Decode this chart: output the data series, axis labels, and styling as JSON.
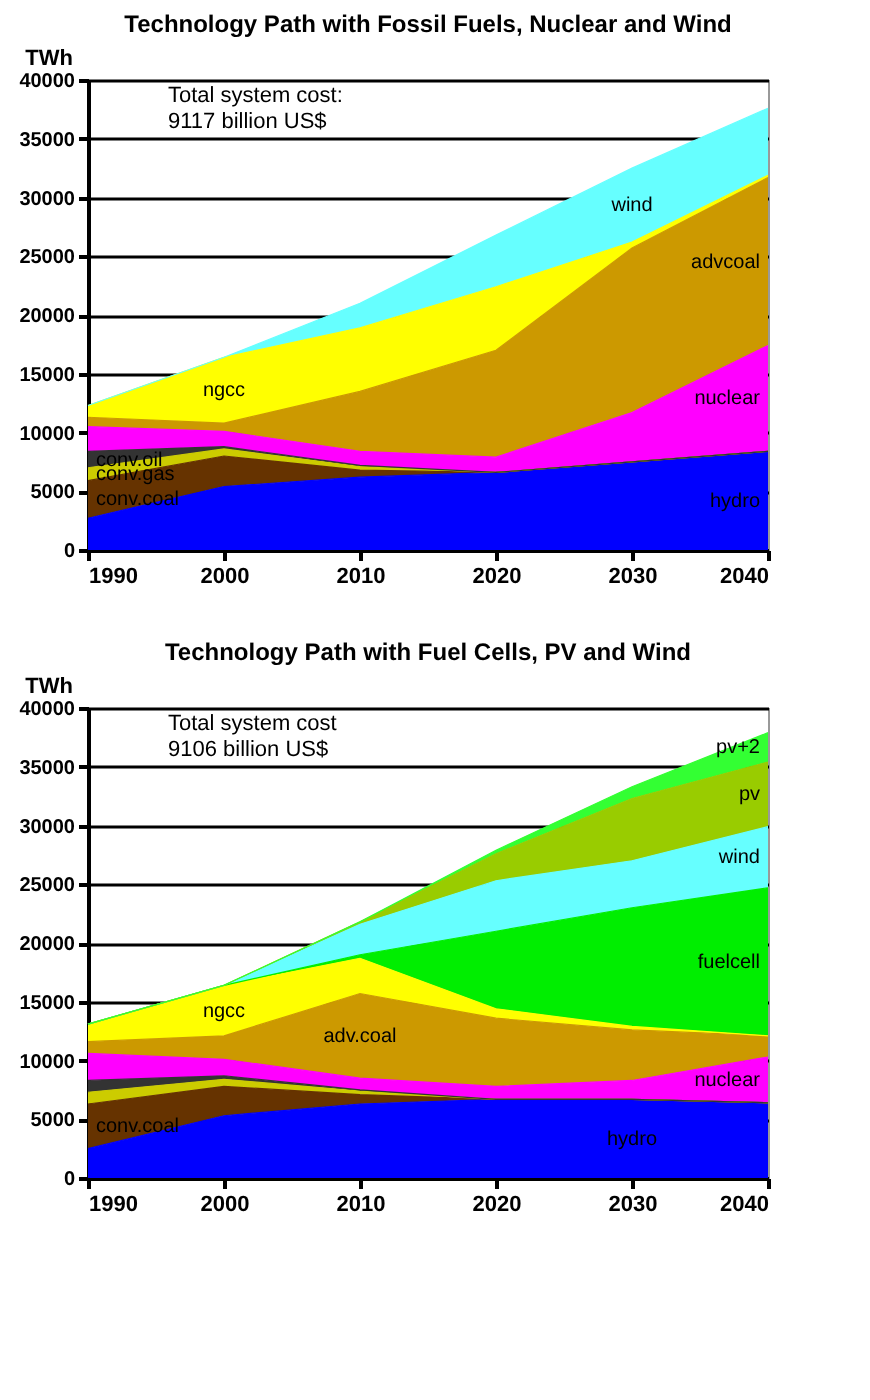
{
  "chart_data": [
    {
      "type": "area",
      "stacked": true,
      "title": "Technology Path with Fossil Fuels, Nuclear and Wind",
      "ylabel": "TWh",
      "x": [
        1990,
        2000,
        2010,
        2020,
        2030,
        2040
      ],
      "xlim": [
        1990,
        2040
      ],
      "xticks": [
        1990,
        2000,
        2010,
        2020,
        2030,
        2040
      ],
      "ylim": [
        0,
        40000
      ],
      "yticks": [
        0,
        5000,
        10000,
        15000,
        20000,
        25000,
        30000,
        35000,
        40000
      ],
      "grid": "y",
      "legend": false,
      "annotations": [
        "Total system cost:\n9117 billion US$"
      ],
      "series": [
        {
          "name": "hydro",
          "color": "#0000ff",
          "values": [
            2700,
            5400,
            6200,
            6600,
            7500,
            8400
          ]
        },
        {
          "name": "conv.coal",
          "color": "#663300",
          "values": [
            3200,
            2600,
            600,
            0,
            0,
            0
          ]
        },
        {
          "name": "conv.gas",
          "color": "#cccc00",
          "values": [
            1100,
            600,
            300,
            0,
            0,
            0
          ]
        },
        {
          "name": "conv.oil",
          "color": "#333333",
          "values": [
            1400,
            200,
            100,
            0,
            0,
            0
          ]
        },
        {
          "name": "nuclear",
          "color": "#ff00ff",
          "values": [
            2100,
            1300,
            1200,
            1300,
            4200,
            9000
          ]
        },
        {
          "name": "advcoal",
          "color": "#cc9900",
          "values": [
            800,
            700,
            5100,
            9100,
            14000,
            14300
          ]
        },
        {
          "name": "ngcc",
          "color": "#ffff00",
          "values": [
            1000,
            5600,
            5400,
            5400,
            500,
            200
          ]
        },
        {
          "name": "wind",
          "color": "#66ffff",
          "values": [
            0,
            0,
            2100,
            4400,
            6300,
            5700
          ]
        }
      ]
    },
    {
      "type": "area",
      "stacked": true,
      "title": "Technology Path with Fuel Cells, PV and Wind",
      "ylabel": "TWh",
      "x": [
        1990,
        2000,
        2010,
        2020,
        2030,
        2040
      ],
      "xlim": [
        1990,
        2040
      ],
      "xticks": [
        1990,
        2000,
        2010,
        2020,
        2030,
        2040
      ],
      "ylim": [
        0,
        40000
      ],
      "yticks": [
        0,
        5000,
        10000,
        15000,
        20000,
        25000,
        30000,
        35000,
        40000
      ],
      "grid": "y",
      "legend": false,
      "annotations": [
        "Total system cost\n9106 billion US$"
      ],
      "series": [
        {
          "name": "hydro",
          "color": "#0000ff",
          "values": [
            2500,
            5300,
            6300,
            6700,
            6700,
            6400
          ]
        },
        {
          "name": "conv.coal",
          "color": "#663300",
          "values": [
            3800,
            2500,
            800,
            0,
            0,
            0
          ]
        },
        {
          "color": "#cccc00",
          "values": [
            1000,
            600,
            300,
            0,
            0,
            0
          ]
        },
        {
          "color": "#333333",
          "values": [
            1000,
            300,
            100,
            0,
            0,
            0
          ]
        },
        {
          "name": "nuclear",
          "color": "#ff00ff",
          "values": [
            2300,
            1400,
            1000,
            1100,
            1600,
            3900
          ]
        },
        {
          "name": "adv.coal",
          "color": "#cc9900",
          "values": [
            1000,
            2000,
            7200,
            5800,
            4300,
            1800
          ]
        },
        {
          "name": "ngcc",
          "color": "#ffff00",
          "values": [
            1500,
            4300,
            3000,
            800,
            300,
            0
          ]
        },
        {
          "name": "fuelcell",
          "color": "#00ee00",
          "values": [
            0,
            0,
            300,
            6600,
            10100,
            12600
          ]
        },
        {
          "name": "wind",
          "color": "#66ffff",
          "values": [
            0,
            0,
            2600,
            4300,
            4000,
            5200
          ]
        },
        {
          "name": "pv",
          "color": "#99cc00",
          "values": [
            0,
            0,
            200,
            2300,
            5300,
            5500
          ]
        },
        {
          "name": "pv+2",
          "color": "#33ff33",
          "values": [
            0,
            0,
            0,
            300,
            1000,
            2500
          ]
        }
      ]
    }
  ]
}
